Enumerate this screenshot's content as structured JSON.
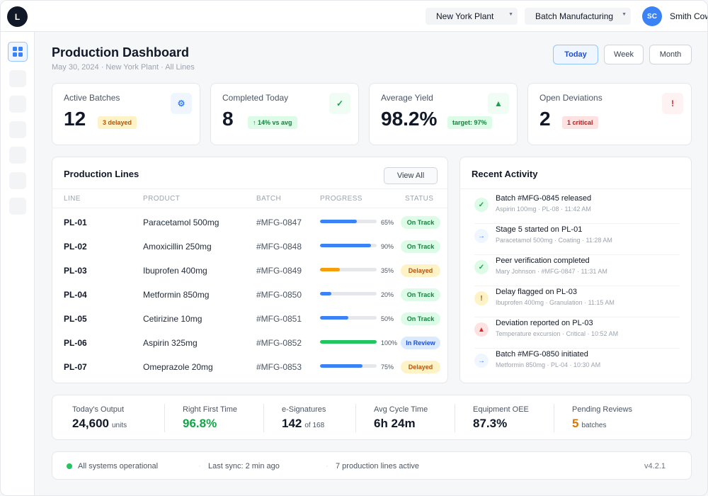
{
  "header": {
    "logo_letter": "L",
    "plant_select": "New York Plant",
    "mode_select": "Batch Manufacturing",
    "user_initials": "SC",
    "user_name": "Smith Cow"
  },
  "page": {
    "title": "Production Dashboard",
    "subtitle": "May 30, 2024 · New York Plant · All Lines",
    "ranges": [
      {
        "label": "Today",
        "active": true
      },
      {
        "label": "Week",
        "active": false
      },
      {
        "label": "Month",
        "active": false
      }
    ]
  },
  "stats": [
    {
      "label": "Active Batches",
      "value": "12",
      "pill": "3 delayed",
      "pill_color": "#b45309",
      "pill_bg": "#fef3c7",
      "icon": "gear-icon",
      "icon_glyph": "⚙",
      "icon_color": "#3b82f6",
      "icon_bg": "#eff6ff"
    },
    {
      "label": "Completed Today",
      "value": "8",
      "pill": "↑ 14% vs avg",
      "pill_color": "#15803d",
      "pill_bg": "#dcfce7",
      "icon": "check-icon",
      "icon_glyph": "✓",
      "icon_color": "#16a34a",
      "icon_bg": "#f0fdf4"
    },
    {
      "label": "Average Yield",
      "value": "98.2%",
      "pill": "target: 97%",
      "pill_color": "#15803d",
      "pill_bg": "#dcfce7",
      "icon": "triangle-up-icon",
      "icon_glyph": "▲",
      "icon_color": "#16a34a",
      "icon_bg": "#f0fdf4"
    },
    {
      "label": "Open Deviations",
      "value": "2",
      "pill": "1 critical",
      "pill_color": "#b91c1c",
      "pill_bg": "#fee2e2",
      "icon": "alert-icon",
      "icon_glyph": "!",
      "icon_color": "#dc2626",
      "icon_bg": "#fef2f2"
    }
  ],
  "lines_panel": {
    "title": "Production Lines",
    "view_all": "View All",
    "columns": [
      "LINE",
      "PRODUCT",
      "BATCH",
      "PROGRESS",
      "STATUS"
    ],
    "rows": [
      {
        "line": "PL-01",
        "product": "Paracetamol 500mg",
        "batch": "#MFG-0847",
        "progress": 0.65,
        "pct": "65%",
        "status": "On Track",
        "kind": "ok"
      },
      {
        "line": "PL-02",
        "product": "Amoxicillin 250mg",
        "batch": "#MFG-0848",
        "progress": 0.9,
        "pct": "90%",
        "status": "On Track",
        "kind": "ok"
      },
      {
        "line": "PL-03",
        "product": "Ibuprofen 400mg",
        "batch": "#MFG-0849",
        "progress": 0.35,
        "pct": "35%",
        "status": "Delayed",
        "kind": "delayed"
      },
      {
        "line": "PL-04",
        "product": "Metformin 850mg",
        "batch": "#MFG-0850",
        "progress": 0.2,
        "pct": "20%",
        "status": "On Track",
        "kind": "ok"
      },
      {
        "line": "PL-05",
        "product": "Cetirizine 10mg",
        "batch": "#MFG-0851",
        "progress": 0.5,
        "pct": "50%",
        "status": "On Track",
        "kind": "ok"
      },
      {
        "line": "PL-06",
        "product": "Aspirin 325mg",
        "batch": "#MFG-0852",
        "progress": 1.0,
        "pct": "100%",
        "status": "In Review",
        "kind": "review"
      },
      {
        "line": "PL-07",
        "product": "Omeprazole 20mg",
        "batch": "#MFG-0853",
        "progress": 0.75,
        "pct": "75%",
        "status": "Delayed",
        "kind": "delayed"
      }
    ]
  },
  "activity_panel": {
    "title": "Recent Activity",
    "items": [
      {
        "title": "Batch #MFG-0845 released",
        "sub": "Aspirin 100mg · PL-08 · 11:42 AM",
        "icon": "check-icon",
        "glyph": "✓",
        "color": "#16a34a",
        "bg": "#dcfce7"
      },
      {
        "title": "Stage 5 started on PL-01",
        "sub": "Paracetamol 500mg · Coating · 11:28 AM",
        "icon": "arrow-right-icon",
        "glyph": "→",
        "color": "#3b82f6",
        "bg": "#eff6ff"
      },
      {
        "title": "Peer verification completed",
        "sub": "Mary Johnson · #MFG-0847 · 11:31 AM",
        "icon": "check-icon",
        "glyph": "✓",
        "color": "#16a34a",
        "bg": "#dcfce7"
      },
      {
        "title": "Delay flagged on PL-03",
        "sub": "Ibuprofen 400mg · Granulation · 11:15 AM",
        "icon": "alert-icon",
        "glyph": "!",
        "color": "#b45309",
        "bg": "#fef3c7"
      },
      {
        "title": "Deviation reported on PL-03",
        "sub": "Temperature excursion · Critical · 10:52 AM",
        "icon": "warning-triangle-icon",
        "glyph": "▲",
        "color": "#dc2626",
        "bg": "#fee2e2"
      },
      {
        "title": "Batch #MFG-0850 initiated",
        "sub": "Metformin 850mg · PL-04 · 10:30 AM",
        "icon": "arrow-right-icon",
        "glyph": "→",
        "color": "#3b82f6",
        "bg": "#eff6ff"
      }
    ]
  },
  "metrics": [
    {
      "label": "Today's Output",
      "value": "24,600",
      "unit": "units",
      "color": "#111827"
    },
    {
      "label": "Right First Time",
      "value": "96.8%",
      "unit": "",
      "color": "#16a34a"
    },
    {
      "label": "e-Signatures",
      "value": "142",
      "unit": "of 168",
      "color": "#111827"
    },
    {
      "label": "Avg Cycle Time",
      "value": "6h 24m",
      "unit": "",
      "color": "#111827"
    },
    {
      "label": "Equipment OEE",
      "value": "87.3%",
      "unit": "",
      "color": "#111827"
    },
    {
      "label": "Pending Reviews",
      "value": "5",
      "unit": "batches",
      "color": "#d97706"
    }
  ],
  "status_bar": {
    "systems": "All systems operational",
    "sync": "Last sync: 2 min ago",
    "lines_active": "7 production lines active",
    "version": "v4.2.1"
  },
  "colors": {
    "accent": "#3b82f6",
    "ok": "#15803d",
    "ok_bg": "#dcfce7",
    "delayed": "#b45309",
    "delayed_bg": "#fef3c7",
    "review": "#1d4ed8",
    "review_bg": "#dbeafe",
    "bar_blue": "#3b82f6",
    "bar_amber": "#f59e0b",
    "bar_green": "#22c55e"
  }
}
